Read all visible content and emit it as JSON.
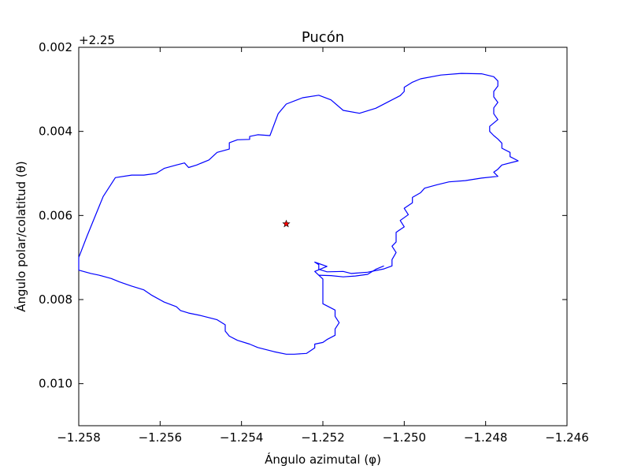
{
  "chart_data": {
    "type": "line",
    "title": "Pucón",
    "xlabel": "Ángulo azimutal (φ)",
    "ylabel": "Ángulo polar/colatitud (θ)",
    "y_offset_text": "+2.25",
    "xlim": [
      -1.258,
      -1.246
    ],
    "ylim": [
      0.011,
      0.002
    ],
    "y_inverted": true,
    "xticks": [
      -1.258,
      -1.256,
      -1.254,
      -1.252,
      -1.25,
      -1.248,
      -1.246
    ],
    "xtick_labels": [
      "−1.258",
      "−1.256",
      "−1.254",
      "−1.252",
      "−1.250",
      "−1.248",
      "−1.246"
    ],
    "yticks": [
      0.002,
      0.004,
      0.006,
      0.008,
      0.01
    ],
    "ytick_labels": [
      "0.002",
      "0.004",
      "0.006",
      "0.008",
      "0.010"
    ],
    "grid": false,
    "series": [
      {
        "color": "#0000ff",
        "x": [
          -1.2496,
          -1.2491,
          -1.2486,
          -1.2481,
          -1.2478,
          -1.2477,
          -1.2477,
          -1.2478,
          -1.2478,
          -1.2477,
          -1.2478,
          -1.2478,
          -1.2477,
          -1.2479,
          -1.2479,
          -1.2478,
          -1.2477,
          -1.2476,
          -1.2476,
          -1.2474,
          -1.2474,
          -1.2472,
          -1.2476,
          -1.2477,
          -1.2478,
          -1.2477,
          -1.2481,
          -1.2485,
          -1.2489,
          -1.2492,
          -1.2495,
          -1.2496,
          -1.2498,
          -1.2498,
          -1.25,
          -1.2499,
          -1.2501,
          -1.25,
          -1.2502,
          -1.2502,
          -1.2502,
          -1.2503,
          -1.2502,
          -1.2503,
          -1.2503,
          -1.2505,
          -1.2509,
          -1.2513,
          -1.2515,
          -1.2519,
          -1.2521,
          -1.2521,
          -1.2522,
          -1.2519,
          -1.2522,
          -1.252,
          -1.252,
          -1.252,
          -1.252,
          -1.2517,
          -1.2517,
          -1.2516,
          -1.2517,
          -1.2517,
          -1.2519,
          -1.252,
          -1.2522,
          -1.2522,
          -1.2524,
          -1.2527,
          -1.2529,
          -1.2532,
          -1.2536,
          -1.2538,
          -1.2541,
          -1.2543,
          -1.2544,
          -1.2544,
          -1.2546,
          -1.255,
          -1.2553,
          -1.2555,
          -1.2556,
          -1.2559,
          -1.2562,
          -1.2564,
          -1.2567,
          -1.257,
          -1.2572,
          -1.2575,
          -1.2577,
          -1.258,
          -1.258,
          -1.2578,
          -1.2574,
          -1.2571,
          -1.2567,
          -1.2564,
          -1.2561,
          -1.2559,
          -1.2556,
          -1.2554,
          -1.2553,
          -1.2551,
          -1.2548,
          -1.2546,
          -1.2543,
          -1.2543,
          -1.2541,
          -1.2538,
          -1.2538,
          -1.2536,
          -1.2533,
          -1.2531,
          -1.2529,
          -1.2525,
          -1.2521,
          -1.2518,
          -1.2515,
          -1.2511,
          -1.2507,
          -1.2504,
          -1.2501,
          -1.25,
          -1.25,
          -1.2498,
          -1.2496
        ],
        "y": [
          0.00275,
          0.00266,
          0.00262,
          0.00263,
          0.0027,
          0.0028,
          0.00292,
          0.00305,
          0.00318,
          0.00331,
          0.00344,
          0.00358,
          0.00372,
          0.00388,
          0.004,
          0.0041,
          0.00418,
          0.00428,
          0.0044,
          0.0045,
          0.0046,
          0.0047,
          0.0048,
          0.0049,
          0.00497,
          0.00507,
          0.00511,
          0.00517,
          0.0052,
          0.00527,
          0.00535,
          0.00546,
          0.00557,
          0.0057,
          0.00583,
          0.00598,
          0.00612,
          0.00627,
          0.0064,
          0.00652,
          0.00663,
          0.00673,
          0.00688,
          0.00705,
          0.0072,
          0.00727,
          0.00735,
          0.00738,
          0.00733,
          0.00734,
          0.00728,
          0.00717,
          0.00711,
          0.00721,
          0.00733,
          0.00751,
          0.00768,
          0.00788,
          0.0081,
          0.00825,
          0.0084,
          0.00855,
          0.0087,
          0.00885,
          0.00895,
          0.00902,
          0.00906,
          0.00915,
          0.00928,
          0.0093,
          0.0093,
          0.00924,
          0.00914,
          0.00906,
          0.00897,
          0.00887,
          0.00875,
          0.0086,
          0.00848,
          0.00838,
          0.00832,
          0.00826,
          0.00817,
          0.00806,
          0.0079,
          0.00777,
          0.00768,
          0.00758,
          0.0075,
          0.00742,
          0.00738,
          0.0073,
          0.007,
          0.0065,
          0.00555,
          0.0051,
          0.00504,
          0.00504,
          0.005,
          0.00488,
          0.0048,
          0.00475,
          0.00486,
          0.0048,
          0.00468,
          0.0045,
          0.00442,
          0.00427,
          0.0042,
          0.00419,
          0.00412,
          0.00408,
          0.0041,
          0.00358,
          0.00335,
          0.0032,
          0.00314,
          0.00325,
          0.0035,
          0.00357,
          0.00345,
          0.0033,
          0.00315,
          0.00305,
          0.00295,
          0.00283,
          0.00275
        ]
      },
      {
        "color": "#0000ff",
        "x": [
          -1.2505,
          -1.2507,
          -1.2509,
          -1.2512,
          -1.2515,
          -1.2518,
          -1.2521
        ],
        "y": [
          0.0072,
          0.00728,
          0.0074,
          0.00744,
          0.00746,
          0.00743,
          0.00742
        ]
      }
    ],
    "markers": [
      {
        "symbol": "star",
        "color": "#ff0000",
        "x": -1.2529,
        "y": 0.0062
      }
    ]
  }
}
